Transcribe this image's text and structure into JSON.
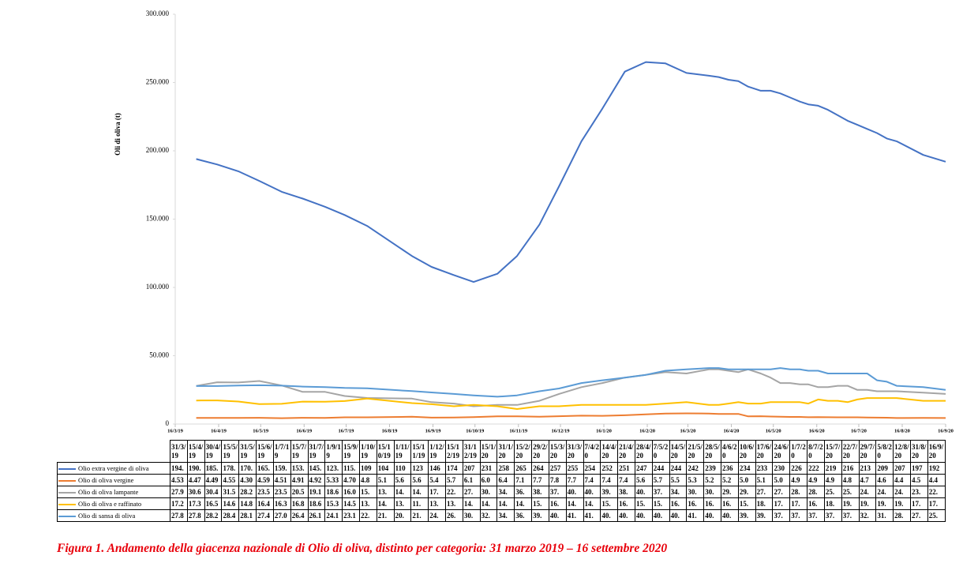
{
  "chart_data": {
    "type": "line",
    "caption": "Figura 1. Andamento della giacenza nazionale di Olio di oliva, distinto per categoria: 31 marzo 2019 – 16 settembre 2020",
    "ylabel": "Oli di oliva (t)",
    "x": [
      "31/3/19",
      "15/4/19",
      "30/4/19",
      "15/5/19",
      "31/5/19",
      "15/6/19",
      "1/7/19",
      "15/7/19",
      "31/7/19",
      "1/9/19",
      "15/9/19",
      "1/10/19",
      "15/10/19",
      "1/11/19",
      "15/11/19",
      "1/12/19",
      "15/12/19",
      "31/12/19",
      "15/1/20",
      "31/1/20",
      "15/2/20",
      "29/2/20",
      "15/3/20",
      "31/3/20",
      "7/4/20",
      "14/4/20",
      "21/4/20",
      "28/4/20",
      "7/5/20",
      "14/5/20",
      "21/5/20",
      "28/5/20",
      "4/6/20",
      "10/6/20",
      "17/6/20",
      "24/6/20",
      "1/7/20",
      "8/7/20",
      "15/7/20",
      "22/7/20",
      "29/7/20",
      "5/8/20",
      "12/8/20",
      "31/8/20",
      "16/9/20"
    ],
    "xlim": [
      "16/3/19",
      "16/9/20"
    ],
    "xticks": [
      "16/3/19",
      "16/4/19",
      "16/5/19",
      "16/6/19",
      "16/7/19",
      "16/8/19",
      "16/9/19",
      "16/10/19",
      "16/11/19",
      "16/12/19",
      "16/1/20",
      "16/2/20",
      "16/3/20",
      "16/4/20",
      "16/5/20",
      "16/6/20",
      "16/7/20",
      "16/8/20",
      "16/9/20"
    ],
    "ylim": [
      0,
      300000
    ],
    "yticks": [
      0,
      {
        "value": 50000,
        "label": "50.000"
      },
      {
        "value": 100000,
        "label": "100.000"
      },
      {
        "value": 150000,
        "label": "150.000"
      },
      {
        "value": 200000,
        "label": "200.000"
      },
      {
        "value": 250000,
        "label": "250.000"
      },
      {
        "value": 300000,
        "label": "300.000"
      }
    ],
    "series": [
      {
        "name": "Olio extra vergine di oliva",
        "color": "#4472c4",
        "values": [
          194000,
          190000,
          185000,
          178000,
          170000,
          165000,
          159000,
          153000,
          145000,
          123000,
          115000,
          109000,
          104000,
          110000,
          123000,
          146000,
          174000,
          207000,
          231000,
          258000,
          265000,
          264000,
          257000,
          255000,
          254000,
          252000,
          251000,
          247000,
          244000,
          244000,
          242000,
          239000,
          236000,
          234000,
          233000,
          230000,
          226000,
          222000,
          219000,
          216000,
          213000,
          209000,
          207000,
          197000,
          192000
        ],
        "value_labels": [
          "194.",
          "190.",
          "185.",
          "178.",
          "170.",
          "165.",
          "159.",
          "153.",
          "145.",
          "123.",
          "115.",
          "109",
          "104",
          "110",
          "123",
          "146",
          "174",
          "207",
          "231",
          "258",
          "265",
          "264",
          "257",
          "255",
          "254",
          "252",
          "251",
          "247",
          "244",
          "244",
          "242",
          "239",
          "236",
          "234",
          "233",
          "230",
          "226",
          "222",
          "219",
          "216",
          "213",
          "209",
          "207",
          "197",
          "192"
        ]
      },
      {
        "name": "Olio di oliva vergine",
        "color": "#ed7d31",
        "values": [
          4530,
          4470,
          4490,
          4550,
          4300,
          4590,
          4510,
          4910,
          4920,
          5330,
          4700,
          4800,
          5100,
          5600,
          5600,
          5400,
          5700,
          6100,
          6000,
          6400,
          7100,
          7700,
          7800,
          7700,
          7400,
          7400,
          7400,
          5600,
          5700,
          5500,
          5300,
          5200,
          5200,
          5000,
          5100,
          5000,
          4900,
          4900,
          4900,
          4800,
          4700,
          4600,
          4400,
          4500,
          4400
        ],
        "value_labels": [
          "4.53",
          "4.47",
          "4.49",
          "4.55",
          "4.30",
          "4.59",
          "4.51",
          "4.91",
          "4.92",
          "5.33",
          "4.70",
          "4.8",
          "5.1",
          "5.6",
          "5.6",
          "5.4",
          "5.7",
          "6.1",
          "6.0",
          "6.4",
          "7.1",
          "7.7",
          "7.8",
          "7.7",
          "7.4",
          "7.4",
          "7.4",
          "5.6",
          "5.7",
          "5.5",
          "5.3",
          "5.2",
          "5.2",
          "5.0",
          "5.1",
          "5.0",
          "4.9",
          "4.9",
          "4.9",
          "4.8",
          "4.7",
          "4.6",
          "4.4",
          "4.5",
          "4.4"
        ]
      },
      {
        "name": "Olio di oliva lampante",
        "color": "#a5a5a5",
        "values": [
          27900,
          30600,
          30400,
          31500,
          28200,
          23500,
          23500,
          20500,
          19100,
          18600,
          16000,
          15000,
          13000,
          14000,
          14000,
          17000,
          22000,
          27000,
          30000,
          34000,
          36000,
          38000,
          37000,
          40000,
          40000,
          39000,
          38000,
          40000,
          37000,
          34000,
          30000,
          30000,
          29000,
          29000,
          27000,
          27000,
          28000,
          28000,
          25000,
          25000,
          24000,
          24000,
          24000,
          23000,
          22000
        ],
        "value_labels": [
          "27.9",
          "30.6",
          "30.4",
          "31.5",
          "28.2",
          "23.5",
          "23.5",
          "20.5",
          "19.1",
          "18.6",
          "16.0",
          "15.",
          "13.",
          "14.",
          "14.",
          "17.",
          "22.",
          "27.",
          "30.",
          "34.",
          "36.",
          "38.",
          "37.",
          "40.",
          "40.",
          "39.",
          "38.",
          "40.",
          "37.",
          "34.",
          "30.",
          "30.",
          "29.",
          "29.",
          "27.",
          "27.",
          "28.",
          "28.",
          "25.",
          "25.",
          "24.",
          "24.",
          "24.",
          "23.",
          "22."
        ]
      },
      {
        "name": "Olio di oliva e raffinato",
        "color": "#ffc000",
        "values": [
          17200,
          17300,
          16500,
          14600,
          14800,
          16400,
          16300,
          16800,
          18600,
          15300,
          14500,
          13000,
          14000,
          13000,
          11000,
          13000,
          13000,
          14000,
          14000,
          14000,
          14000,
          15000,
          16000,
          14000,
          14000,
          15000,
          16000,
          15000,
          15000,
          16000,
          16000,
          16000,
          16000,
          15000,
          18000,
          17000,
          17000,
          16000,
          18000,
          19000,
          19000,
          19000,
          19000,
          17000,
          17000
        ],
        "value_labels": [
          "17.2",
          "17.3",
          "16.5",
          "14.6",
          "14.8",
          "16.4",
          "16.3",
          "16.8",
          "18.6",
          "15.3",
          "14.5",
          "13.",
          "14.",
          "13.",
          "11.",
          "13.",
          "13.",
          "14.",
          "14.",
          "14.",
          "14.",
          "15.",
          "16.",
          "14.",
          "14.",
          "15.",
          "16.",
          "15.",
          "15.",
          "16.",
          "16.",
          "16.",
          "16.",
          "15.",
          "18.",
          "17.",
          "17.",
          "16.",
          "18.",
          "19.",
          "19.",
          "19.",
          "19.",
          "17.",
          "17."
        ]
      },
      {
        "name": "Olio di sansa di oliva",
        "color": "#5b9bd5",
        "values": [
          27800,
          27800,
          28200,
          28400,
          28100,
          27400,
          27000,
          26400,
          26100,
          24100,
          23100,
          22000,
          21000,
          20000,
          21000,
          24000,
          26000,
          30000,
          32000,
          34000,
          36000,
          39000,
          40000,
          41000,
          41000,
          40000,
          40000,
          40000,
          40000,
          40000,
          41000,
          40000,
          40000,
          39000,
          39000,
          37000,
          37000,
          37000,
          37000,
          37000,
          32000,
          31000,
          28000,
          27000,
          25000
        ],
        "value_labels": [
          "27.8",
          "27.8",
          "28.2",
          "28.4",
          "28.1",
          "27.4",
          "27.0",
          "26.4",
          "26.1",
          "24.1",
          "23.1",
          "22.",
          "21.",
          "20.",
          "21.",
          "24.",
          "26.",
          "30.",
          "32.",
          "34.",
          "36.",
          "39.",
          "40.",
          "41.",
          "41.",
          "40.",
          "40.",
          "40.",
          "40.",
          "40.",
          "41.",
          "40.",
          "40.",
          "39.",
          "39.",
          "37.",
          "37.",
          "37.",
          "37.",
          "37.",
          "32.",
          "31.",
          "28.",
          "27.",
          "25."
        ]
      }
    ]
  }
}
